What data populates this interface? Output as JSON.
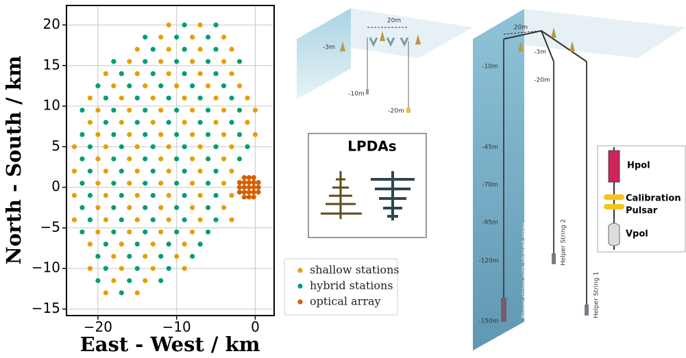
{
  "chart_data": {
    "type": "scatter",
    "xlabel": "East - West / km",
    "ylabel": "North - South / km",
    "xlim": [
      -24,
      2.4
    ],
    "ylim": [
      -15.8,
      22.4
    ],
    "xticks": [
      {
        "value": -20,
        "label": "−20"
      },
      {
        "value": -10,
        "label": "−10"
      },
      0
    ],
    "yticks": [
      {
        "value": -15,
        "label": "−15"
      },
      {
        "value": -10,
        "label": "−10"
      },
      {
        "value": -5,
        "label": "−5"
      },
      0,
      5,
      10,
      15,
      20
    ],
    "grid": true,
    "legend": "lower right",
    "series": [
      {
        "name": "shallow stations",
        "color": "#e69f00",
        "x": [
          -11,
          -7,
          -12,
          -8,
          -4,
          -15,
          -11,
          -7,
          -3,
          -16,
          -12,
          -8,
          -4,
          -19,
          -15,
          -11,
          -7,
          -3,
          -18,
          -14,
          -10,
          -6,
          -2,
          -21,
          -17,
          -13,
          -9,
          -5,
          -1,
          -20,
          -16,
          -12,
          -8,
          -4,
          0,
          -21,
          -17,
          -13,
          -9,
          -5,
          -1,
          -20,
          -16,
          -12,
          -8,
          -4,
          0,
          -23,
          -19,
          -15,
          -11,
          -7,
          -3,
          -20,
          -16,
          -12,
          -8,
          -4,
          -23,
          -19,
          -15,
          -11,
          -7,
          -3,
          -20,
          -16,
          -12,
          -8,
          -4,
          -23,
          -19,
          -15,
          -11,
          -7,
          -3,
          -20,
          -16,
          -12,
          -8,
          -4,
          -23,
          -19,
          -15,
          -11,
          -7,
          -3,
          -20,
          -16,
          -12,
          -8,
          -21,
          -17,
          -13,
          -9,
          -18,
          -14,
          -10,
          -21,
          -17,
          -13,
          -9,
          -18,
          -14,
          -19,
          -15
        ],
        "values": [
          20,
          20,
          18.5,
          18.5,
          18.5,
          17,
          17,
          17,
          17,
          15.5,
          15.5,
          15.5,
          15.5,
          14,
          14,
          14,
          14,
          14,
          12.5,
          12.5,
          12.5,
          12.5,
          12.5,
          11,
          11,
          11,
          11,
          11,
          11,
          9.5,
          9.5,
          9.5,
          9.5,
          9.5,
          9.5,
          8,
          8,
          8,
          8,
          8,
          8,
          6.5,
          6.5,
          6.5,
          6.5,
          6.5,
          6.5,
          5,
          5,
          5,
          5,
          5,
          5,
          3.5,
          3.5,
          3.5,
          3.5,
          3.5,
          2,
          2,
          2,
          2,
          2,
          2,
          0.5,
          0.5,
          0.5,
          0.5,
          0.5,
          -1,
          -1,
          -1,
          -1,
          -1,
          -1,
          -2.5,
          -2.5,
          -2.5,
          -2.5,
          -2.5,
          -4,
          -4,
          -4,
          -4,
          -4,
          -4,
          -5.5,
          -5.5,
          -5.5,
          -5.5,
          -7,
          -7,
          -7,
          -7,
          -8.5,
          -8.5,
          -8.5,
          -10,
          -10,
          -10,
          -10,
          -11.5,
          -11.5,
          -13,
          -13
        ]
      },
      {
        "name": "hybrid stations",
        "color": "#009e73",
        "x": [
          -9,
          -5,
          -14,
          -10,
          -6,
          -13,
          -9,
          -5,
          -18,
          -14,
          -10,
          -6,
          -2,
          -17,
          -13,
          -9,
          -5,
          -20,
          -16,
          -12,
          -8,
          -4,
          -19,
          -15,
          -11,
          -7,
          -3,
          -22,
          -18,
          -14,
          -10,
          -6,
          -2,
          -19,
          -15,
          -11,
          -7,
          -3,
          -22,
          -18,
          -14,
          -10,
          -6,
          -2,
          -21,
          -17,
          -13,
          -9,
          -5,
          -1,
          -22,
          -18,
          -14,
          -10,
          -6,
          -2,
          -21,
          -17,
          -13,
          -9,
          -5,
          -22,
          -18,
          -14,
          -10,
          -6,
          -21,
          -17,
          -13,
          -9,
          -5,
          -22,
          -18,
          -14,
          -10,
          -6,
          -21,
          -17,
          -13,
          -9,
          -5,
          -22,
          -18,
          -14,
          -10,
          -6,
          -19,
          -15,
          -11,
          -7,
          -20,
          -16,
          -12,
          -8,
          -19,
          -15,
          -11,
          -20,
          -16,
          -12,
          -17
        ],
        "values": [
          20,
          20,
          18.5,
          18.5,
          18.5,
          17,
          17,
          17,
          15.5,
          15.5,
          15.5,
          15.5,
          15.5,
          14,
          14,
          14,
          14,
          12.5,
          12.5,
          12.5,
          12.5,
          12.5,
          11,
          11,
          11,
          11,
          11,
          9.5,
          9.5,
          9.5,
          9.5,
          9.5,
          9.5,
          8,
          8,
          8,
          8,
          8,
          6.5,
          6.5,
          6.5,
          6.5,
          6.5,
          6.5,
          5,
          5,
          5,
          5,
          5,
          5,
          3.5,
          3.5,
          3.5,
          3.5,
          3.5,
          3.5,
          2,
          2,
          2,
          2,
          2,
          0.5,
          0.5,
          0.5,
          0.5,
          0.5,
          -1,
          -1,
          -1,
          -1,
          -1,
          -2.5,
          -2.5,
          -2.5,
          -2.5,
          -2.5,
          -4,
          -4,
          -4,
          -4,
          -4,
          -5.5,
          -5.5,
          -5.5,
          -5.5,
          -5.5,
          -7,
          -7,
          -7,
          -7,
          -8.5,
          -8.5,
          -8.5,
          -8.5,
          -10,
          -10,
          -10,
          -11.5,
          -11.5,
          -11.5,
          -13
        ]
      },
      {
        "name": "optical array",
        "color": "#d55e00",
        "x": [
          -1.4,
          -0.8,
          -0.2,
          -2,
          -1.4,
          -0.8,
          -0.2,
          0.4,
          -2,
          -1.4,
          -0.8,
          -0.2,
          0.4,
          -2,
          -1.4,
          -0.8,
          -0.2,
          0.4,
          -1.4,
          -0.8,
          -0.2
        ],
        "values": [
          -1.2,
          -1.2,
          -1.2,
          -0.6,
          -0.6,
          -0.6,
          -0.6,
          -0.6,
          0,
          0,
          0,
          0,
          0,
          0.6,
          0.6,
          0.6,
          0.6,
          0.6,
          1.2,
          1.2,
          1.2
        ]
      }
    ]
  },
  "diagram": {
    "left_station": [
      "20m",
      "-3m",
      "-10m",
      "-20m"
    ],
    "lpda_title": "LPDAs",
    "right_station": [
      "20m",
      "-3m",
      "-10m",
      "-20m",
      "-45m",
      "-70m",
      "-95m",
      "-120m",
      "-150m"
    ],
    "strings": [
      "Power string with phased array",
      "Helper String 2",
      "Helper String 1"
    ],
    "legend": [
      "Hpol",
      "Calibration",
      "Pulsar",
      "Vpol"
    ]
  }
}
